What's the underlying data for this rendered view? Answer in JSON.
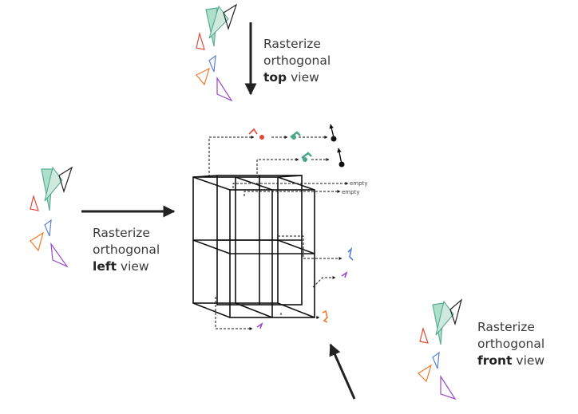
{
  "views": {
    "top": {
      "line1": "Rasterize",
      "line2": "orthogonal",
      "bold": "top",
      "rest": " view"
    },
    "left": {
      "line1": "Rasterize",
      "line2": "orthogonal",
      "bold": "left",
      "rest": " view"
    },
    "front": {
      "line1": "Rasterize",
      "line2": "orthogonal",
      "bold": "front",
      "rest": " view"
    }
  },
  "cell_labels": {
    "empty_1": "empty",
    "empty_2": "empty"
  },
  "colors": {
    "triangle_teal": "#4aa58a",
    "triangle_blue": "#5b7fd6",
    "triangle_red": "#e04a3a",
    "triangle_orange": "#f07a2a",
    "triangle_purple": "#9a4ac8",
    "grid": "#111111",
    "arrow": "#222222"
  }
}
